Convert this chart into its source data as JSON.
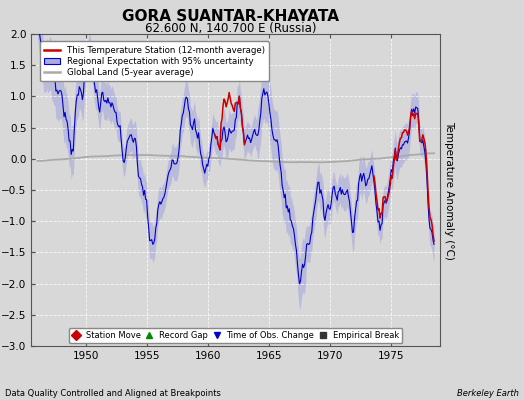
{
  "title": "GORA SUANTAR-KHAYATA",
  "subtitle": "62.600 N, 140.700 E (Russia)",
  "ylabel": "Temperature Anomaly (°C)",
  "footer_left": "Data Quality Controlled and Aligned at Breakpoints",
  "footer_right": "Berkeley Earth",
  "xlim": [
    1945.5,
    1979.0
  ],
  "ylim": [
    -3.0,
    2.0
  ],
  "yticks": [
    -3,
    -2.5,
    -2,
    -1.5,
    -1,
    -0.5,
    0,
    0.5,
    1,
    1.5,
    2
  ],
  "xticks": [
    1950,
    1955,
    1960,
    1965,
    1970,
    1975
  ],
  "bg_color": "#d8d8d8",
  "plot_bg_color": "#d8d8d8",
  "regional_color": "#0000cc",
  "regional_fill_color": "#aaaadd",
  "global_land_color": "#aaaaaa",
  "station_color": "#cc0000",
  "legend_entries": [
    "This Temperature Station (12-month average)",
    "Regional Expectation with 95% uncertainty",
    "Global Land (5-year average)"
  ],
  "bottom_legend": [
    {
      "marker": "D",
      "color": "#cc0000",
      "label": "Station Move"
    },
    {
      "marker": "^",
      "color": "#008800",
      "label": "Record Gap"
    },
    {
      "marker": "v",
      "color": "#0000cc",
      "label": "Time of Obs. Change"
    },
    {
      "marker": "s",
      "color": "#333333",
      "label": "Empirical Break"
    }
  ]
}
